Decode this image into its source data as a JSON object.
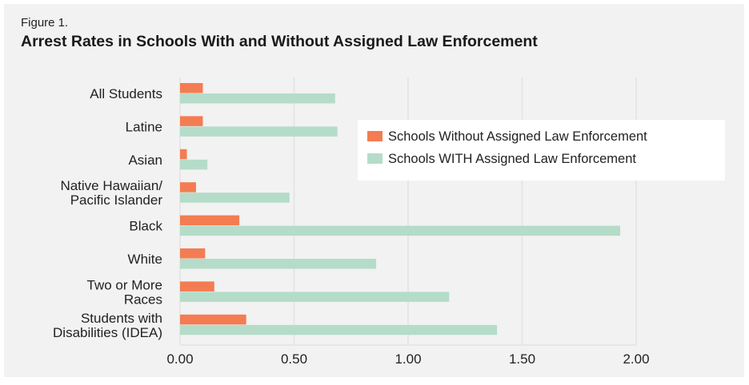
{
  "figure_label": "Figure 1.",
  "chart_data": {
    "type": "bar",
    "orientation": "horizontal",
    "title": "Arrest Rates in Schools With and Without Assigned Law Enforcement",
    "categories": [
      [
        "All Students"
      ],
      [
        "Latine"
      ],
      [
        "Asian"
      ],
      [
        "Native Hawaiian/",
        "Pacific Islander"
      ],
      [
        "Black"
      ],
      [
        "White"
      ],
      [
        "Two or More",
        "Races"
      ],
      [
        "Students with",
        "Disabilities (IDEA)"
      ]
    ],
    "series": [
      {
        "name": "Schools Without Assigned Law Enforcement",
        "color": "#F47C52",
        "values": [
          0.1,
          0.1,
          0.03,
          0.07,
          0.26,
          0.11,
          0.15,
          0.29
        ]
      },
      {
        "name": "Schools WITH Assigned Law Enforcement",
        "color": "#B5DCC9",
        "values": [
          0.68,
          0.69,
          0.12,
          0.48,
          1.93,
          0.86,
          1.18,
          1.39
        ]
      }
    ],
    "xlim": [
      0,
      2.0
    ],
    "xticks": [
      "0.00",
      "0.50",
      "1.00",
      "1.50",
      "2.00"
    ],
    "xlabel": "",
    "ylabel": "",
    "grid": "vertical",
    "legend": "upper-right"
  }
}
